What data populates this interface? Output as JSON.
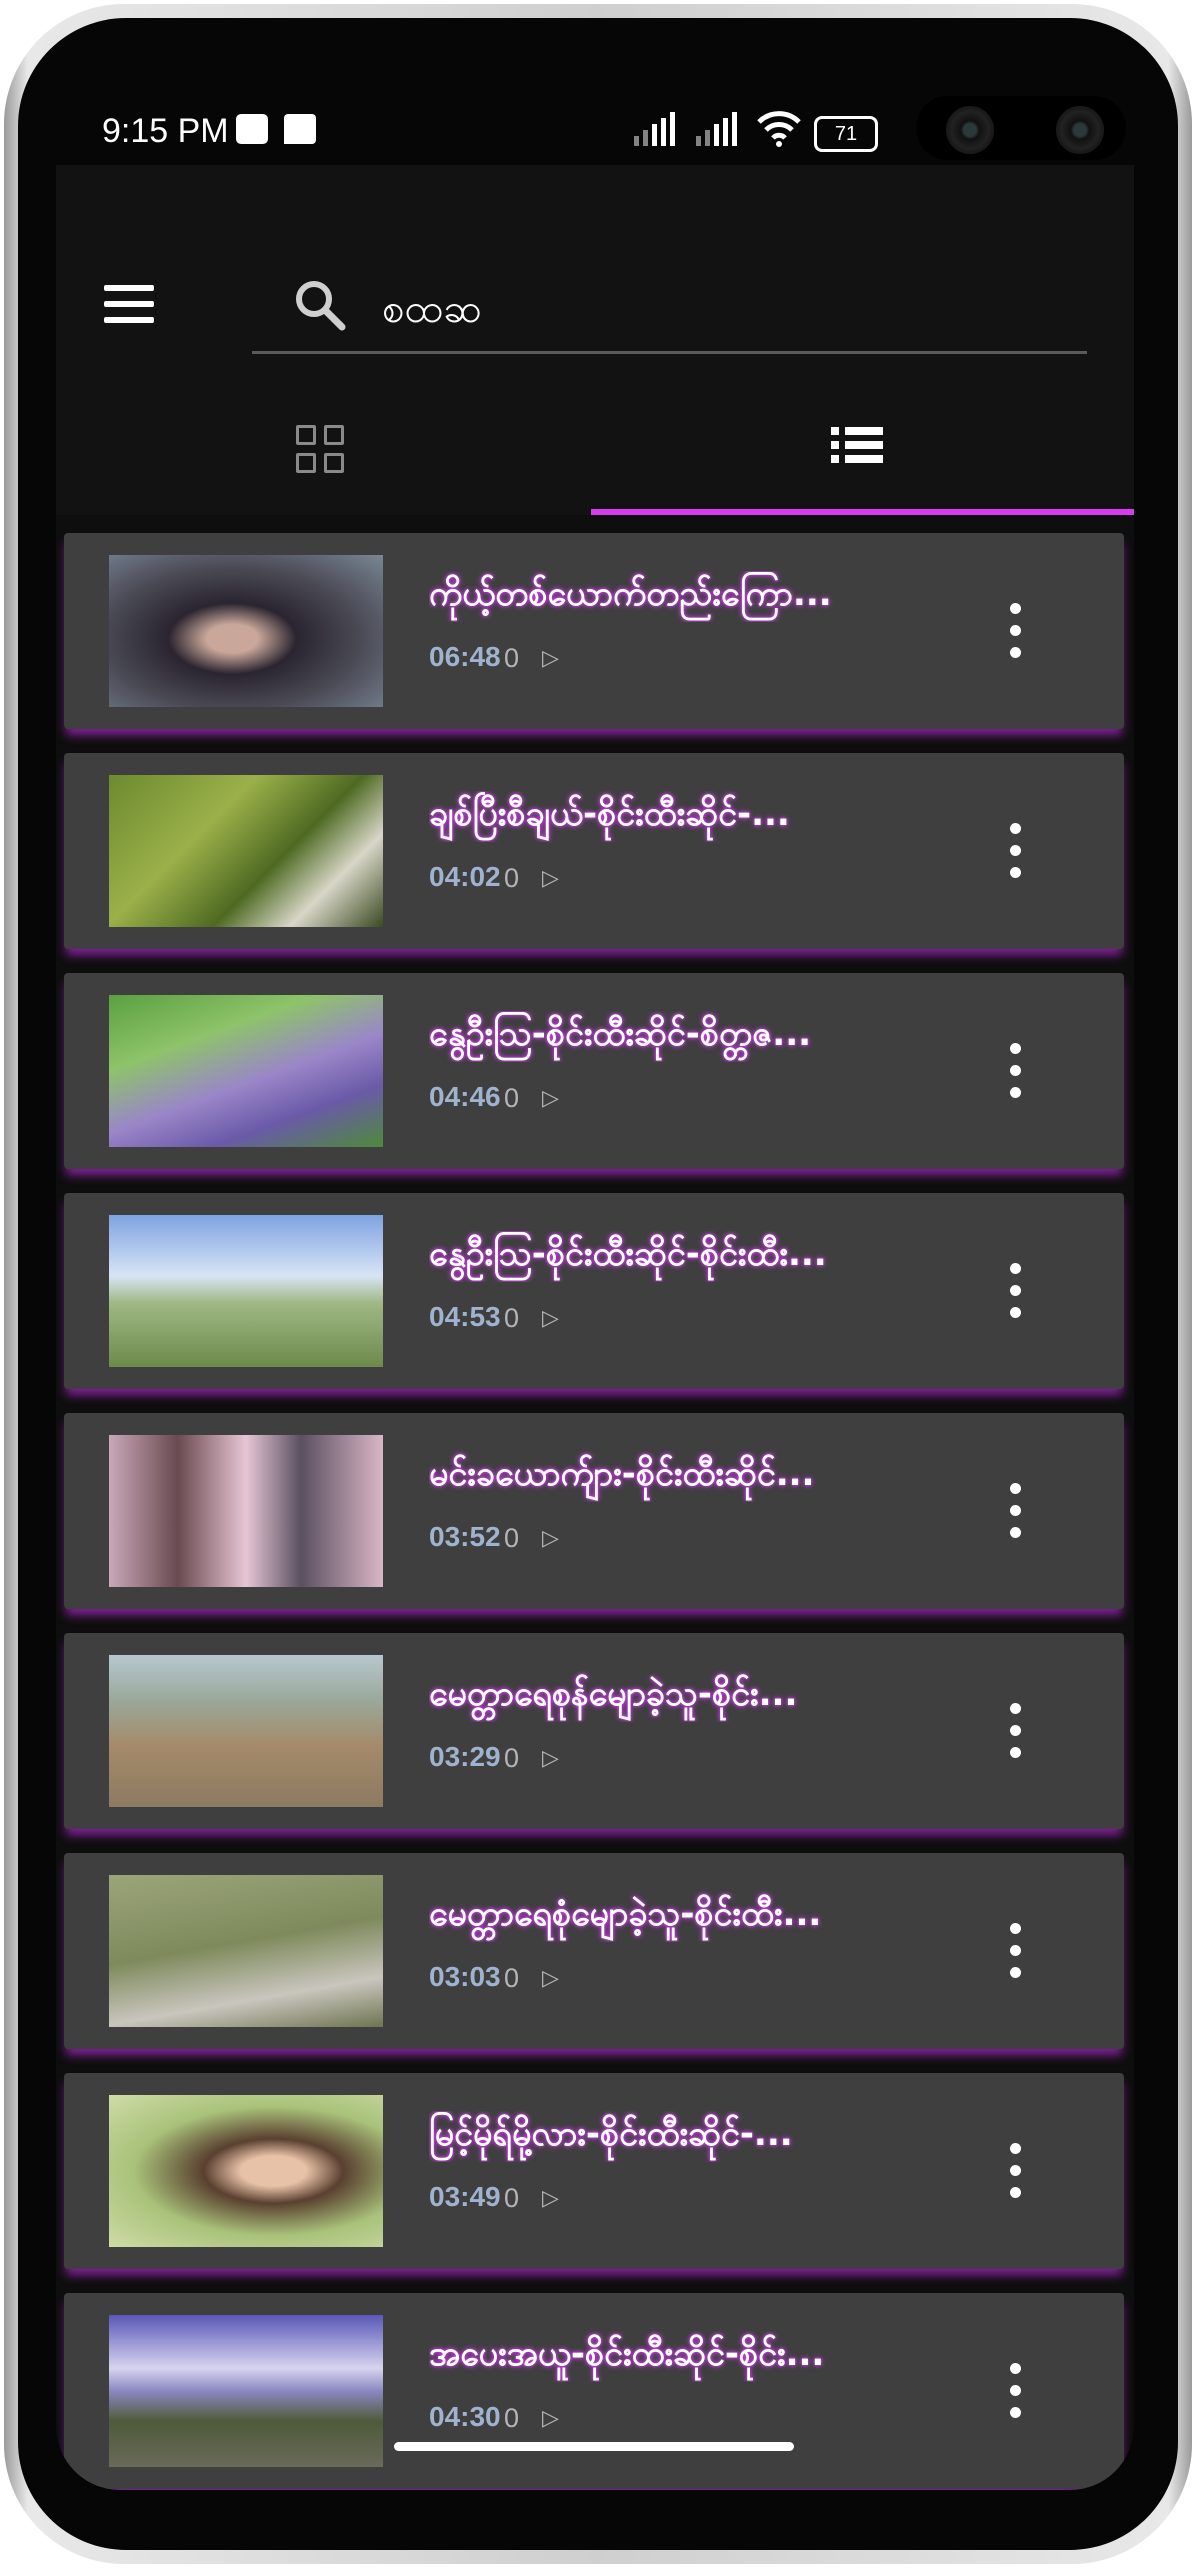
{
  "status_bar": {
    "time": "9:15 PM",
    "battery": "71",
    "icons": [
      "sim-card-icon",
      "message-icon",
      "signal-icon",
      "signal-icon",
      "wifi-icon",
      "battery-icon"
    ]
  },
  "search": {
    "value": "စထဆ",
    "icon": "search-icon"
  },
  "tabs": [
    {
      "icon": "grid-view-icon",
      "active": false
    },
    {
      "icon": "list-view-icon",
      "active": true
    }
  ],
  "colors": {
    "accent": "#d83cf0",
    "card": "#3f3f3f",
    "duration": "#9fb3ce"
  },
  "videos": [
    {
      "title": "ကိုယ့်တစ်ယောက်တည်းကြော...",
      "duration": "06:48",
      "views": "0"
    },
    {
      "title": "ချစ်ပြီးစီချယ်-စိုင်းထီးဆိုင်-...",
      "duration": "04:02",
      "views": "0"
    },
    {
      "title": "နွေဦးသြ-စိုင်းထီးဆိုင်-စိတ္တဇ...",
      "duration": "04:46",
      "views": "0"
    },
    {
      "title": "နွေဦးသြ-စိုင်းထီးဆိုင်-စိုင်းထီး...",
      "duration": "04:53",
      "views": "0"
    },
    {
      "title": "မင်းခယောက်ျား-စိုင်းထီးဆိုင်...",
      "duration": "03:52",
      "views": "0"
    },
    {
      "title": "မေတ္တာရေစုန်မျောခဲ့သူ-စိုင်း...",
      "duration": "03:29",
      "views": "0"
    },
    {
      "title": "မေတ္တာရေစုံမျောခဲ့သူ-စိုင်းထီး...",
      "duration": "03:03",
      "views": "0"
    },
    {
      "title": "မြင့်မိုရ်မို့လား-စိုင်းထီးဆိုင်-...",
      "duration": "03:49",
      "views": "0"
    },
    {
      "title": "အပေးအယူ-စိုင်းထီးဆိုင်-စိုင်း...",
      "duration": "04:30",
      "views": "0"
    }
  ]
}
